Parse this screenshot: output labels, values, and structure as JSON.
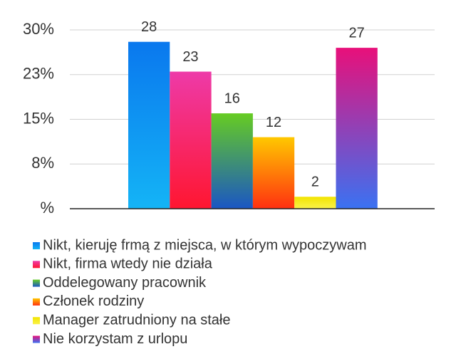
{
  "chart_data": {
    "type": "bar",
    "ylim": [
      0,
      30
    ],
    "yticks": [
      {
        "value": 0,
        "label": "%"
      },
      {
        "value": 7.5,
        "label": "8%"
      },
      {
        "value": 15,
        "label": "15%"
      },
      {
        "value": 22.5,
        "label": "23%"
      },
      {
        "value": 30,
        "label": "30%"
      }
    ],
    "grid": true,
    "series": [
      {
        "name": "Nikt, kieruję frmą z miejsca, w którym wypoczywam",
        "gradient": [
          "#0a78ee",
          "#14b4f6"
        ],
        "values": [
          28
        ]
      },
      {
        "name": "Nikt, firma wtedy nie działa",
        "gradient": [
          "#ee3aa8",
          "#ff1630"
        ],
        "values": [
          23
        ]
      },
      {
        "name": "Oddelegowany pracownik",
        "gradient": [
          "#66cc22",
          "#1a56c4"
        ],
        "values": [
          16
        ]
      },
      {
        "name": "Członek rodziny",
        "gradient": [
          "#ffc800",
          "#ff3010"
        ],
        "values": [
          12
        ]
      },
      {
        "name": "Manager zatrudniony na stałe",
        "gradient": [
          "#f2e400",
          "#faf24a"
        ],
        "values": [
          2
        ]
      },
      {
        "name": "Nie korzystam z urlopu",
        "gradient": [
          "#e8107a",
          "#3a72f2"
        ],
        "values": [
          27
        ]
      }
    ]
  }
}
